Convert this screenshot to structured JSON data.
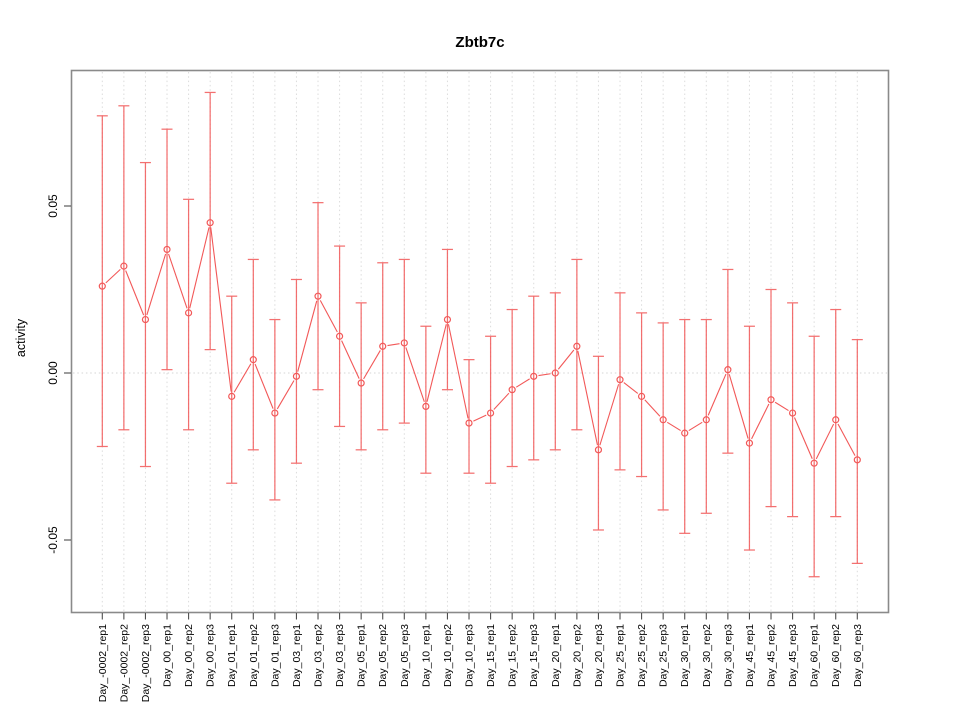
{
  "window": {
    "background": "#ffffff"
  },
  "chart_data": {
    "type": "line",
    "title": "Zbtb7c",
    "xlabel": "",
    "ylabel": "activity",
    "legend": "none",
    "grid": "dotted vertical gridline at every category; dotted horizontal line at y=0",
    "marker": "open-circle",
    "x_tick_rotation": 90,
    "ylim": [
      -0.0716,
      0.0904
    ],
    "yticks": {
      "values": [
        0.05,
        0.0,
        -0.05
      ],
      "labels": [
        "0.05",
        "0.00",
        "-0.05"
      ]
    },
    "categories": [
      "Day_-0002_rep1",
      "Day_-0002_rep2",
      "Day_-0002_rep3",
      "Day_00_rep1",
      "Day_00_rep2",
      "Day_00_rep3",
      "Day_01_rep1",
      "Day_01_rep2",
      "Day_01_rep3",
      "Day_03_rep1",
      "Day_03_rep2",
      "Day_03_rep3",
      "Day_05_rep1",
      "Day_05_rep2",
      "Day_05_rep3",
      "Day_10_rep1",
      "Day_10_rep2",
      "Day_10_rep3",
      "Day_15_rep1",
      "Day_15_rep2",
      "Day_15_rep3",
      "Day_20_rep1",
      "Day_20_rep2",
      "Day_20_rep3",
      "Day_25_rep1",
      "Day_25_rep2",
      "Day_25_rep3",
      "Day_30_rep1",
      "Day_30_rep2",
      "Day_30_rep3",
      "Day_45_rep1",
      "Day_45_rep2",
      "Day_45_rep3",
      "Day_60_rep1",
      "Day_60_rep2",
      "Day_60_rep3"
    ],
    "series": [
      {
        "name": "activity",
        "values": [
          0.026,
          0.032,
          0.016,
          0.037,
          0.018,
          0.045,
          -0.007,
          0.004,
          -0.012,
          -0.001,
          0.023,
          0.011,
          -0.003,
          0.008,
          0.009,
          -0.01,
          0.016,
          -0.015,
          -0.012,
          -0.005,
          -0.001,
          0.0,
          0.008,
          -0.023,
          -0.002,
          -0.007,
          -0.014,
          -0.018,
          -0.014,
          0.001,
          -0.021,
          -0.008,
          -0.012,
          -0.027,
          -0.014,
          -0.026
        ],
        "upper": [
          0.077,
          0.08,
          0.063,
          0.073,
          0.052,
          0.084,
          0.023,
          0.034,
          0.016,
          0.028,
          0.051,
          0.038,
          0.021,
          0.033,
          0.034,
          0.014,
          0.037,
          0.004,
          0.011,
          0.019,
          0.023,
          0.024,
          0.034,
          0.005,
          0.024,
          0.018,
          0.015,
          0.016,
          0.016,
          0.031,
          0.014,
          0.025,
          0.021,
          0.011,
          0.019,
          0.01
        ],
        "lower": [
          -0.022,
          -0.017,
          -0.028,
          0.001,
          -0.017,
          0.007,
          -0.033,
          -0.023,
          -0.038,
          -0.027,
          -0.005,
          -0.016,
          -0.023,
          -0.017,
          -0.015,
          -0.03,
          -0.005,
          -0.03,
          -0.033,
          -0.028,
          -0.026,
          -0.023,
          -0.017,
          -0.047,
          -0.029,
          -0.031,
          -0.041,
          -0.048,
          -0.042,
          -0.024,
          -0.053,
          -0.04,
          -0.043,
          -0.061,
          -0.043,
          -0.057
        ]
      }
    ],
    "colors": {
      "series": "#f25858",
      "grid": "#dcdcdc",
      "zero_line": "#d4d4d4",
      "box": "#8a8a8a",
      "tick": "#4d4d4d",
      "text": "#000000"
    }
  }
}
